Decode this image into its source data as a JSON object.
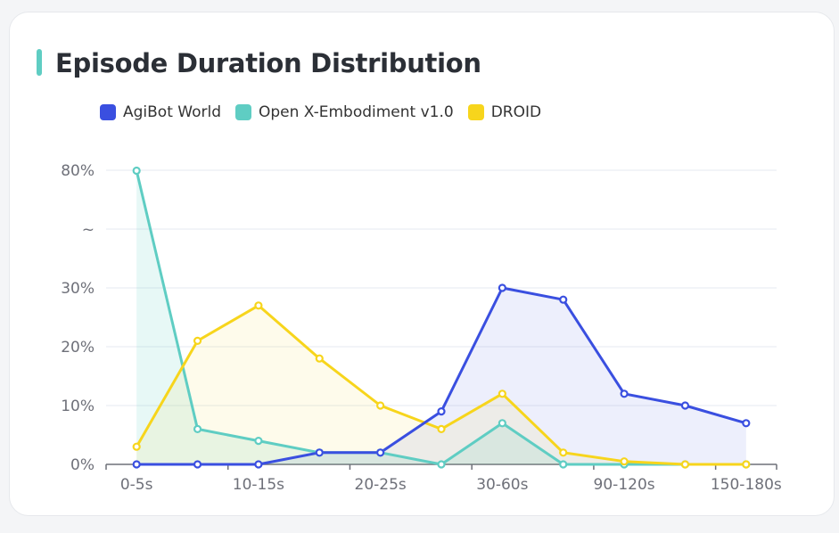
{
  "chart_data": {
    "type": "area",
    "title": "Episode Duration Distribution",
    "categories": [
      "0-5s",
      "",
      "10-15s",
      "",
      "20-25s",
      "",
      "30-60s",
      "",
      "90-120s",
      "",
      "150-180s"
    ],
    "y_tick_labels": [
      "0%",
      "10%",
      "20%",
      "30%",
      "~",
      "80%"
    ],
    "y_scale": "broken: 0-30% linear, axis break (~), then 80%",
    "grid": true,
    "legend_position": "top-left",
    "series": [
      {
        "name": "AgiBot World",
        "color": "#3a4fe0",
        "values": [
          0,
          0,
          0,
          2,
          2,
          9,
          30,
          28,
          12,
          10,
          7
        ]
      },
      {
        "name": "Open X-Embodiment v1.0",
        "color": "#5fcdc3",
        "values": [
          79.7,
          6,
          4,
          2,
          2,
          0,
          7,
          0,
          0,
          0,
          0
        ]
      },
      {
        "name": "DROID",
        "color": "#f7d51c",
        "values": [
          3,
          21,
          27,
          18,
          10,
          6,
          12,
          2,
          0.5,
          0,
          0
        ]
      }
    ]
  }
}
